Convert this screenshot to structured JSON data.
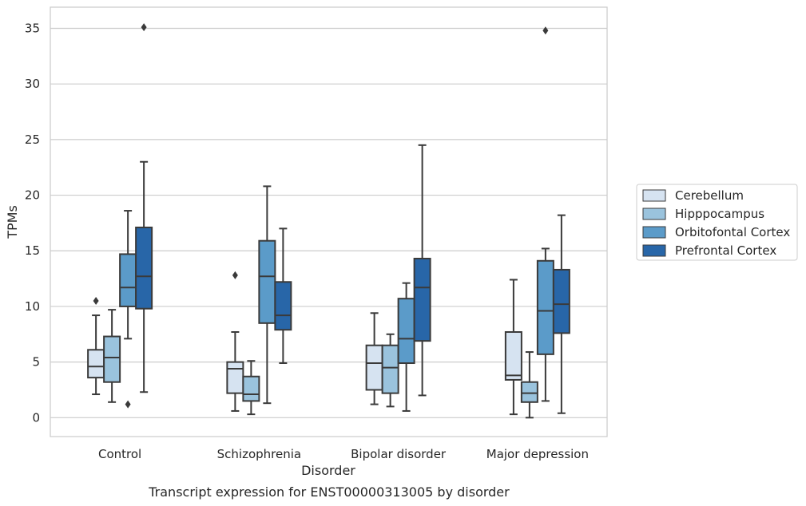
{
  "chart_data": {
    "type": "box",
    "title": "",
    "caption": "Transcript expression for ENST00000313005 by disorder",
    "xlabel": "Disorder",
    "ylabel": "TPMs",
    "ylim": [
      -1.7,
      36.9
    ],
    "yticks": [
      0,
      5,
      10,
      15,
      20,
      25,
      30,
      35
    ],
    "grid": "horizontal",
    "legend_placement": "right",
    "categories": [
      "Control",
      "Schizophrenia",
      "Bipolar disorder",
      "Major depression"
    ],
    "series": [
      {
        "name": "Cerebellum",
        "color": "#d6e3f1",
        "boxes": [
          {
            "whisker_low": 2.1,
            "q1": 3.6,
            "median": 4.6,
            "q3": 6.1,
            "whisker_high": 9.2,
            "outliers": [
              10.5
            ]
          },
          {
            "whisker_low": 0.6,
            "q1": 2.2,
            "median": 4.4,
            "q3": 5.0,
            "whisker_high": 7.7,
            "outliers": [
              12.8
            ]
          },
          {
            "whisker_low": 1.2,
            "q1": 2.5,
            "median": 4.9,
            "q3": 6.5,
            "whisker_high": 9.4,
            "outliers": []
          },
          {
            "whisker_low": 0.3,
            "q1": 3.4,
            "median": 3.8,
            "q3": 7.7,
            "whisker_high": 12.4,
            "outliers": []
          }
        ]
      },
      {
        "name": "Hipppocampus",
        "color": "#9ac3dd",
        "boxes": [
          {
            "whisker_low": 1.4,
            "q1": 3.2,
            "median": 5.4,
            "q3": 7.3,
            "whisker_high": 9.7,
            "outliers": []
          },
          {
            "whisker_low": 0.3,
            "q1": 1.5,
            "median": 2.1,
            "q3": 3.7,
            "whisker_high": 5.1,
            "outliers": []
          },
          {
            "whisker_low": 1.0,
            "q1": 2.2,
            "median": 4.5,
            "q3": 6.5,
            "whisker_high": 7.5,
            "outliers": []
          },
          {
            "whisker_low": 0.0,
            "q1": 1.4,
            "median": 2.2,
            "q3": 3.2,
            "whisker_high": 5.9,
            "outliers": []
          }
        ]
      },
      {
        "name": "Orbitofontal Cortex",
        "color": "#5b9bc9",
        "boxes": [
          {
            "whisker_low": 7.1,
            "q1": 10.0,
            "median": 11.7,
            "q3": 14.7,
            "whisker_high": 18.6,
            "outliers": [
              1.2
            ]
          },
          {
            "whisker_low": 1.3,
            "q1": 8.5,
            "median": 12.7,
            "q3": 15.9,
            "whisker_high": 20.8,
            "outliers": []
          },
          {
            "whisker_low": 0.6,
            "q1": 4.9,
            "median": 7.1,
            "q3": 10.7,
            "whisker_high": 12.1,
            "outliers": []
          },
          {
            "whisker_low": 1.5,
            "q1": 5.7,
            "median": 9.6,
            "q3": 14.1,
            "whisker_high": 15.2,
            "outliers": [
              34.8
            ]
          }
        ]
      },
      {
        "name": "Prefrontal Cortex",
        "color": "#2866a8",
        "boxes": [
          {
            "whisker_low": 2.3,
            "q1": 9.8,
            "median": 12.7,
            "q3": 17.1,
            "whisker_high": 23.0,
            "outliers": [
              35.1
            ]
          },
          {
            "whisker_low": 4.9,
            "q1": 7.9,
            "median": 9.2,
            "q3": 12.2,
            "whisker_high": 17.0,
            "outliers": []
          },
          {
            "whisker_low": 2.0,
            "q1": 6.9,
            "median": 11.7,
            "q3": 14.3,
            "whisker_high": 24.5,
            "outliers": []
          },
          {
            "whisker_low": 0.4,
            "q1": 7.6,
            "median": 10.2,
            "q3": 13.3,
            "whisker_high": 18.2,
            "outliers": []
          }
        ]
      }
    ]
  }
}
